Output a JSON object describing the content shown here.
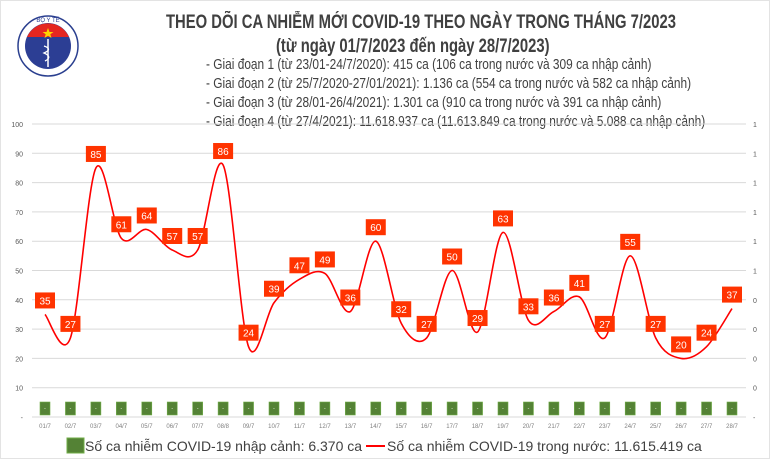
{
  "header": {
    "logo_text": "BỘ Y TẾ · MINISTRY OF HEALTH",
    "title": "THEO DÕI CA NHIỄM MỚI COVID-19 THEO NGÀY TRONG THÁNG 7/2023",
    "subtitle": "(từ ngày 01/7/2023 đến ngày 28/7/2023)",
    "stages": [
      "- Giai đoạn 1 (từ 23/01-24/7/2020): 415 ca (106 ca trong nước và 309 ca nhập cảnh)",
      "- Giai đoạn 2 (từ 25/7/2020-27/01/2021): 1.136 ca (554 ca trong nước và 582 ca nhập cảnh)",
      "- Giai đoạn 3 (từ 28/01-26/4/2021): 1.301 ca (910 ca trong nước và 391 ca nhập cảnh)",
      "- Giai đoạn 4 (từ 27/4/2021): 11.618.937 ca (11.613.849 ca trong nước và 5.088 ca nhập cảnh)"
    ]
  },
  "chart_data": {
    "type": "bar+line",
    "categories": [
      "01/7",
      "02/7",
      "03/7",
      "04/7",
      "05/7",
      "06/7",
      "07/7",
      "08/8",
      "09/7",
      "10/7",
      "11/7",
      "12/7",
      "13/7",
      "14/7",
      "15/7",
      "16/7",
      "17/7",
      "18/7",
      "19/7",
      "20/7",
      "21/7",
      "22/7",
      "23/7",
      "24/7",
      "25/7",
      "26/7",
      "27/7",
      "28/7"
    ],
    "series": [
      {
        "name": "Số ca nhiễm COVID-19 nhập cảnh: 6.370 ca",
        "type": "bar",
        "axis": "right",
        "color": "#548235",
        "data_label": "-"
      },
      {
        "name": "Số ca nhiễm COVID-19 trong nước: 11.615.419 ca",
        "type": "line",
        "axis": "left",
        "color": "#ff0000",
        "label_color": "#ff3300",
        "values": [
          35,
          27,
          85,
          61,
          64,
          57,
          57,
          86,
          24,
          39,
          47,
          49,
          36,
          60,
          32,
          27,
          50,
          29,
          63,
          33,
          36,
          41,
          27,
          55,
          27,
          20,
          24,
          37
        ]
      }
    ],
    "left_axis": {
      "ylim": [
        0,
        100
      ],
      "ticks": [
        "-",
        "10",
        "20",
        "30",
        "40",
        "50",
        "60",
        "70",
        "80",
        "90",
        "100"
      ]
    },
    "right_axis": {
      "ticks": [
        "-",
        "0",
        "0",
        "0",
        "0",
        "1",
        "1",
        "1",
        "1",
        "1",
        "1"
      ]
    },
    "grid": true,
    "legend": "bottom"
  }
}
